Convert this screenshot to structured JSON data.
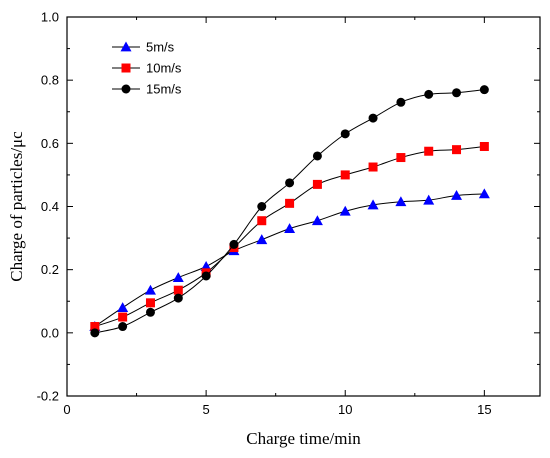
{
  "chart_data": {
    "type": "line",
    "title": "",
    "xlabel": "Charge time/min",
    "ylabel": "Charge of particles/μc",
    "xlim": [
      0,
      17
    ],
    "ylim": [
      -0.2,
      1.0
    ],
    "xticks": [
      0,
      5,
      10,
      15
    ],
    "xtick_labels": [
      "0",
      "5",
      "10",
      "15"
    ],
    "yticks": [
      -0.2,
      0.0,
      0.2,
      0.4,
      0.6,
      0.8,
      1.0
    ],
    "ytick_labels": [
      "-0.2",
      "0.0",
      "0.2",
      "0.4",
      "0.6",
      "0.8",
      "1.0"
    ],
    "grid": false,
    "legend_position": "top-left",
    "series": [
      {
        "name": "5m/s",
        "marker": "triangle",
        "color": "#0000ff",
        "x": [
          1,
          2,
          3,
          4,
          5,
          6,
          7,
          8,
          9,
          10,
          11,
          12,
          13,
          14,
          15
        ],
        "y": [
          0.02,
          0.08,
          0.135,
          0.175,
          0.21,
          0.26,
          0.295,
          0.33,
          0.355,
          0.385,
          0.405,
          0.415,
          0.42,
          0.435,
          0.44
        ]
      },
      {
        "name": "10m/s",
        "marker": "square",
        "color": "#ff0000",
        "x": [
          1,
          2,
          3,
          4,
          5,
          6,
          7,
          8,
          9,
          10,
          11,
          12,
          13,
          14,
          15
        ],
        "y": [
          0.02,
          0.05,
          0.095,
          0.135,
          0.19,
          0.27,
          0.355,
          0.41,
          0.47,
          0.5,
          0.525,
          0.555,
          0.575,
          0.58,
          0.59
        ]
      },
      {
        "name": "15m/s",
        "marker": "circle",
        "color": "#000000",
        "x": [
          1,
          2,
          3,
          4,
          5,
          6,
          7,
          8,
          9,
          10,
          11,
          12,
          13,
          14,
          15
        ],
        "y": [
          0.0,
          0.02,
          0.065,
          0.11,
          0.18,
          0.28,
          0.4,
          0.475,
          0.56,
          0.63,
          0.68,
          0.73,
          0.755,
          0.76,
          0.77
        ]
      }
    ]
  }
}
